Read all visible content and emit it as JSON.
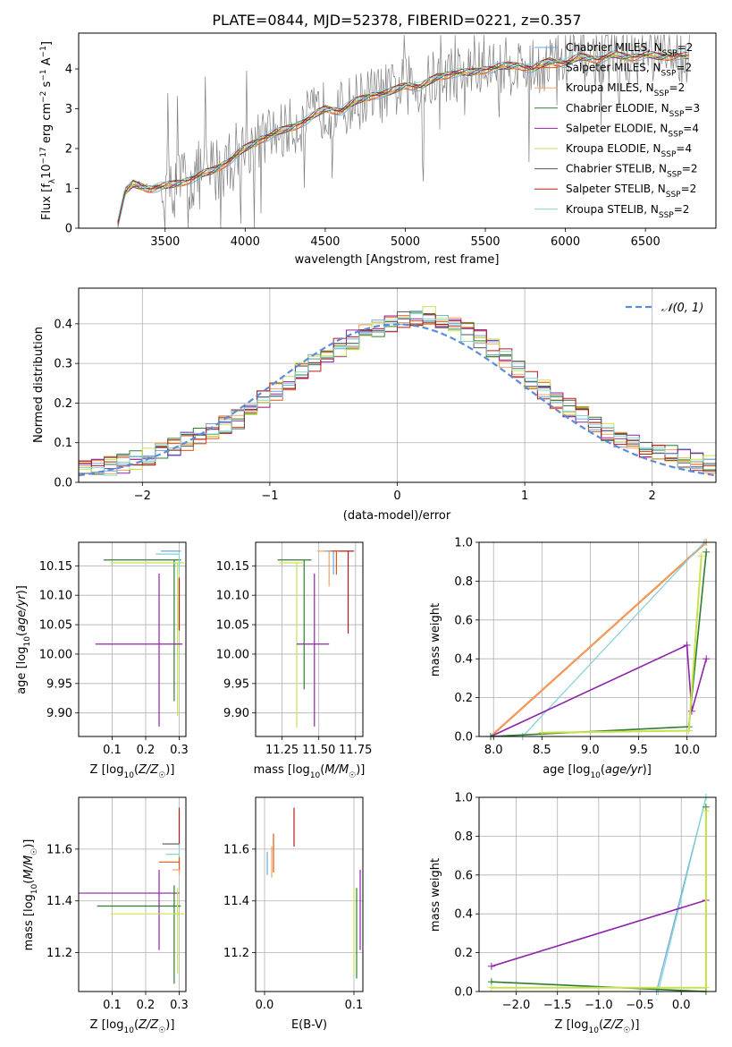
{
  "figure": {
    "title": "PLATE=0844, MJD=52378, FIBERID=0221, z=0.357"
  },
  "colors": {
    "chabrier_miles": "#6fa8dc",
    "salpeter_miles": "#e6550d",
    "kroupa_miles": "#f7a35c",
    "chabrier_elodie": "#2e7d32",
    "salpeter_elodie": "#8e24aa",
    "kroupa_elodie": "#c7e34a",
    "chabrier_stelib": "#555555",
    "salpeter_stelib": "#b71c1c",
    "kroupa_stelib": "#7fd6d6",
    "data": "#808080",
    "gaussian": "#5b8bd9"
  },
  "chart_data": [
    {
      "type": "line",
      "title": "PLATE=0844, MJD=52378, FIBERID=0221, z=0.357",
      "xlabel": "wavelength [Angstrom, rest frame]",
      "ylabel": "Flux [f_λ 10^-17 erg cm^-2 s^-1 A^-1]",
      "xlim": [
        2960,
        6940
      ],
      "ylim": [
        0,
        4.9
      ],
      "xticks": [
        "3500",
        "4000",
        "4500",
        "5000",
        "5500",
        "6000",
        "6500"
      ],
      "yticks": [
        "0",
        "1",
        "2",
        "3",
        "4"
      ],
      "legend": {
        "placement": "top-right",
        "entries": [
          "Chabrier MILES, N_SSP=2",
          "Salpeter MILES, N_SSP=2",
          "Kroupa MILES, N_SSP=2",
          "Chabrier ELODIE, N_SSP=3",
          "Salpeter ELODIE, N_SSP=4",
          "Kroupa ELODIE, N_SSP=4",
          "Chabrier STELIB, N_SSP=2",
          "Salpeter STELIB, N_SSP=2",
          "Kroupa STELIB, N_SSP=2"
        ]
      },
      "model_continuum": {
        "x": [
          3200,
          3250,
          3300,
          3400,
          3500,
          3600,
          3700,
          3800,
          3900,
          4000,
          4100,
          4200,
          4300,
          4400,
          4500,
          4600,
          4700,
          4800,
          4900,
          5000,
          5100,
          5200,
          5300,
          5400,
          5500,
          5600,
          5700,
          5800,
          5900,
          6000,
          6100,
          6200,
          6300,
          6400,
          6500,
          6600,
          6700,
          6780
        ],
        "y": [
          0.05,
          0.9,
          1.1,
          1.0,
          1.05,
          1.15,
          1.3,
          1.45,
          1.7,
          2.0,
          2.25,
          2.4,
          2.55,
          2.75,
          3.0,
          2.95,
          3.2,
          3.35,
          3.4,
          3.6,
          3.55,
          3.8,
          3.9,
          3.9,
          4.0,
          4.05,
          4.1,
          4.0,
          4.2,
          4.15,
          4.3,
          4.25,
          4.35,
          4.3,
          4.35,
          4.3,
          4.35,
          4.3
        ]
      },
      "grid": false
    },
    {
      "type": "area",
      "xlabel": "(data-model)/error",
      "ylabel": "Normed distribution",
      "xlim": [
        -2.5,
        2.5
      ],
      "ylim": [
        0,
        0.49
      ],
      "xticks": [
        "−2",
        "−1",
        "0",
        "1",
        "2"
      ],
      "yticks": [
        "0.0",
        "0.1",
        "0.2",
        "0.3",
        "0.4"
      ],
      "bins": 50,
      "legend": {
        "placement": "top-right",
        "entries": [
          "𝒩(0, 1)"
        ]
      },
      "histogram_envelope": {
        "x": [
          -2.5,
          -2.25,
          -2.0,
          -1.75,
          -1.5,
          -1.25,
          -1.0,
          -0.75,
          -0.5,
          -0.25,
          0.0,
          0.25,
          0.5,
          0.75,
          1.0,
          1.25,
          1.5,
          1.75,
          2.0,
          2.25,
          2.5
        ],
        "y": [
          0.03,
          0.04,
          0.06,
          0.09,
          0.12,
          0.16,
          0.22,
          0.28,
          0.33,
          0.38,
          0.41,
          0.42,
          0.39,
          0.34,
          0.27,
          0.21,
          0.16,
          0.11,
          0.08,
          0.06,
          0.04
        ]
      },
      "grid": true
    },
    {
      "type": "scatter",
      "xlabel": "Z [log10(Z/Z☉)]",
      "ylabel": "age  [log10(age/yr)]",
      "xlim": [
        0.0,
        0.32
      ],
      "ylim": [
        9.86,
        10.19
      ],
      "xticks": [
        "0.1",
        "0.2",
        "0.3"
      ],
      "yticks": [
        "9.90",
        "9.95",
        "10.00",
        "10.05",
        "10.10",
        "10.15"
      ],
      "grid": true
    },
    {
      "type": "scatter",
      "xlabel": "mass [log10(M/M☉)]",
      "xlim": [
        11.07,
        11.8
      ],
      "ylim": [
        9.86,
        10.19
      ],
      "xticks": [
        "11.25",
        "11.50",
        "11.75"
      ],
      "yticks": [
        "9.90",
        "9.95",
        "10.00",
        "10.05",
        "10.10",
        "10.15"
      ],
      "grid": true
    },
    {
      "type": "line",
      "xlabel": "age  [log10(age/yr)]",
      "ylabel": "mass weight",
      "xlim": [
        7.85,
        10.3
      ],
      "ylim": [
        0,
        1.0
      ],
      "xticks": [
        "8.0",
        "8.5",
        "9.0",
        "9.5",
        "10.0"
      ],
      "yticks": [
        "0.0",
        "0.2",
        "0.4",
        "0.6",
        "0.8",
        "1.0"
      ],
      "grid": true,
      "series": [
        {
          "x": [
            7.97,
            10.2
          ],
          "y": [
            0.0,
            1.0
          ]
        },
        {
          "x": [
            7.97,
            10.2
          ],
          "y": [
            0.0,
            1.0
          ]
        },
        {
          "x": [
            8.3,
            10.18
          ],
          "y": [
            0.0,
            1.0
          ]
        },
        {
          "x": [
            8.3,
            10.18
          ],
          "y": [
            0.0,
            1.0
          ]
        },
        {
          "x": [
            7.97,
            10.0,
            10.05,
            10.2
          ],
          "y": [
            0.0,
            0.47,
            0.13,
            0.4
          ]
        },
        {
          "x": [
            7.97,
            10.02,
            10.2
          ],
          "y": [
            0.0,
            0.05,
            0.95
          ]
        },
        {
          "x": [
            8.5,
            10.02,
            10.15
          ],
          "y": [
            0.02,
            0.03,
            0.93
          ]
        }
      ]
    },
    {
      "type": "scatter",
      "xlabel": "Z [log10(Z/Z☉)]",
      "ylabel": "mass [log10(M/M☉)]",
      "xlim": [
        0.0,
        0.32
      ],
      "ylim": [
        11.05,
        11.8
      ],
      "xticks": [
        "0.1",
        "0.2",
        "0.3"
      ],
      "yticks": [
        "11.2",
        "11.4",
        "11.6"
      ],
      "grid": true
    },
    {
      "type": "scatter",
      "xlabel": "E(B-V)",
      "xlim": [
        -0.01,
        0.11
      ],
      "ylim": [
        11.05,
        11.8
      ],
      "xticks": [
        "0.0",
        "0.1"
      ],
      "yticks": [
        "11.2",
        "11.4",
        "11.6"
      ],
      "grid": true
    },
    {
      "type": "line",
      "xlabel": "Z [log10(Z/Z☉)]",
      "ylabel": "mass weight",
      "xlim": [
        -2.45,
        0.42
      ],
      "ylim": [
        0,
        1.0
      ],
      "xticks": [
        "−2.0",
        "−1.5",
        "−1.0",
        "−0.5",
        "0.0"
      ],
      "yticks": [
        "0.0",
        "0.2",
        "0.4",
        "0.6",
        "0.8",
        "1.0"
      ],
      "grid": true,
      "series": [
        {
          "x": [
            -0.3,
            0.3
          ],
          "y": [
            0.0,
            1.0
          ]
        },
        {
          "x": [
            -0.28,
            0.3
          ],
          "y": [
            0.0,
            1.0
          ]
        },
        {
          "x": [
            -2.3,
            0.3
          ],
          "y": [
            0.13,
            0.47
          ]
        },
        {
          "x": [
            -2.3,
            0.3,
            0.3
          ],
          "y": [
            0.05,
            0.0,
            0.95
          ]
        },
        {
          "x": [
            -2.3,
            0.3,
            0.3
          ],
          "y": [
            0.02,
            0.02,
            0.93
          ]
        }
      ]
    }
  ],
  "labels": {
    "p1_xlabel": "wavelength [Angstrom, rest frame]",
    "p2_xlabel": "(data-model)/error",
    "p2_ylabel": "Normed distribution",
    "p2_legend": "𝒩(0, 1)",
    "p3_ylabel": "age  [log10(age/yr)]",
    "p5_ylabel": "mass weight",
    "p5_xlabel": "age  [log10(age/yr)]",
    "p6_ylabel": "mass [log10(M/M☉)]",
    "p7_xlabel": "E(B-V)",
    "p8_xlabel": "Z [log10(Z/Z☉)]",
    "p8_ylabel": "mass weight"
  }
}
